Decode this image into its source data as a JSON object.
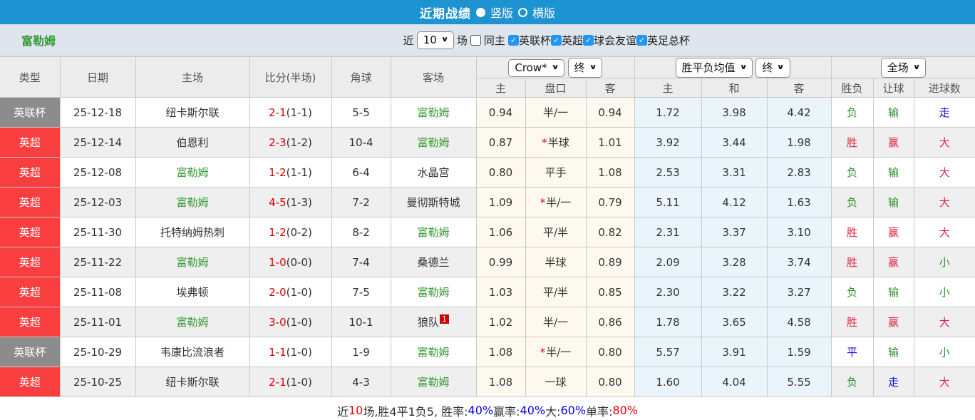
{
  "header": {
    "title": "近期战绩",
    "radio_vertical": "竖版",
    "radio_horizontal": "横版"
  },
  "filter": {
    "team": "富勒姆",
    "recent_prefix": "近",
    "recent_value": "10",
    "recent_suffix": "场",
    "same_home_label": "同主",
    "same_home_checked": false,
    "leagues": [
      {
        "label": "英联杯",
        "checked": true
      },
      {
        "label": "英超",
        "checked": true
      },
      {
        "label": "球会友谊",
        "checked": true
      },
      {
        "label": "英足总杯",
        "checked": true
      }
    ]
  },
  "table": {
    "columns": [
      "类型",
      "日期",
      "主场",
      "比分(半场)",
      "角球",
      "客场"
    ],
    "selects": {
      "company": "Crow*",
      "company_time": "终",
      "average": "胜平负均值",
      "average_time": "终",
      "scope": "全场"
    },
    "subheaders": [
      "主",
      "盘口",
      "客",
      "主",
      "和",
      "客",
      "胜负",
      "让球",
      "进球数"
    ],
    "rows": [
      {
        "type": "英联杯",
        "type_color": "type-gray",
        "date": "25-12-18",
        "home": "纽卡斯尔联",
        "home_is_focus": false,
        "score": "2-1",
        "half_score": "(1-1)",
        "corners": "5-5",
        "away": "富勒姆",
        "away_is_focus": true,
        "away_badge": "",
        "ah_home": "0.94",
        "handicap": "半/一",
        "handicap_star": false,
        "ah_away": "0.94",
        "avg_home": "1.72",
        "avg_draw": "3.98",
        "avg_away": "4.42",
        "result": "负",
        "result_color": "green",
        "handicap_result": "输",
        "handicap_result_color": "green",
        "goals_result": "走",
        "goals_result_color": "blue"
      },
      {
        "type": "英超",
        "type_color": "type-red",
        "date": "25-12-14",
        "home": "伯恩利",
        "home_is_focus": false,
        "score": "2-3",
        "half_score": "(1-2)",
        "corners": "10-4",
        "away": "富勒姆",
        "away_is_focus": true,
        "away_badge": "",
        "ah_home": "0.87",
        "handicap": "半球",
        "handicap_star": true,
        "ah_away": "1.01",
        "avg_home": "3.92",
        "avg_draw": "3.44",
        "avg_away": "1.98",
        "result": "胜",
        "result_color": "red",
        "handicap_result": "赢",
        "handicap_result_color": "red",
        "goals_result": "大",
        "goals_result_color": "red"
      },
      {
        "type": "英超",
        "type_color": "type-red",
        "date": "25-12-08",
        "home": "富勒姆",
        "home_is_focus": true,
        "score": "1-2",
        "half_score": "(1-1)",
        "corners": "6-4",
        "away": "水晶宫",
        "away_is_focus": false,
        "away_badge": "",
        "ah_home": "0.80",
        "handicap": "平手",
        "handicap_star": false,
        "ah_away": "1.08",
        "avg_home": "2.53",
        "avg_draw": "3.31",
        "avg_away": "2.83",
        "result": "负",
        "result_color": "green",
        "handicap_result": "输",
        "handicap_result_color": "green",
        "goals_result": "大",
        "goals_result_color": "red"
      },
      {
        "type": "英超",
        "type_color": "type-red",
        "date": "25-12-03",
        "home": "富勒姆",
        "home_is_focus": true,
        "score": "4-5",
        "half_score": "(1-3)",
        "corners": "7-2",
        "away": "曼彻斯特城",
        "away_is_focus": false,
        "away_badge": "",
        "ah_home": "1.09",
        "handicap": "半/一",
        "handicap_star": true,
        "ah_away": "0.79",
        "avg_home": "5.11",
        "avg_draw": "4.12",
        "avg_away": "1.63",
        "result": "负",
        "result_color": "green",
        "handicap_result": "输",
        "handicap_result_color": "green",
        "goals_result": "大",
        "goals_result_color": "red"
      },
      {
        "type": "英超",
        "type_color": "type-red",
        "date": "25-11-30",
        "home": "托特纳姆热刺",
        "home_is_focus": false,
        "score": "1-2",
        "half_score": "(0-2)",
        "corners": "8-2",
        "away": "富勒姆",
        "away_is_focus": true,
        "away_badge": "",
        "ah_home": "1.06",
        "handicap": "平/半",
        "handicap_star": false,
        "ah_away": "0.82",
        "avg_home": "2.31",
        "avg_draw": "3.37",
        "avg_away": "3.10",
        "result": "胜",
        "result_color": "red",
        "handicap_result": "赢",
        "handicap_result_color": "red",
        "goals_result": "大",
        "goals_result_color": "red"
      },
      {
        "type": "英超",
        "type_color": "type-red",
        "date": "25-11-22",
        "home": "富勒姆",
        "home_is_focus": true,
        "score": "1-0",
        "half_score": "(0-0)",
        "corners": "7-4",
        "away": "桑德兰",
        "away_is_focus": false,
        "away_badge": "",
        "ah_home": "0.99",
        "handicap": "半球",
        "handicap_star": false,
        "ah_away": "0.89",
        "avg_home": "2.09",
        "avg_draw": "3.28",
        "avg_away": "3.74",
        "result": "胜",
        "result_color": "red",
        "handicap_result": "赢",
        "handicap_result_color": "red",
        "goals_result": "小",
        "goals_result_color": "green"
      },
      {
        "type": "英超",
        "type_color": "type-red",
        "date": "25-11-08",
        "home": "埃弗顿",
        "home_is_focus": false,
        "score": "2-0",
        "half_score": "(1-0)",
        "corners": "7-5",
        "away": "富勒姆",
        "away_is_focus": true,
        "away_badge": "",
        "ah_home": "1.03",
        "handicap": "平/半",
        "handicap_star": false,
        "ah_away": "0.85",
        "avg_home": "2.30",
        "avg_draw": "3.22",
        "avg_away": "3.27",
        "result": "负",
        "result_color": "green",
        "handicap_result": "输",
        "handicap_result_color": "green",
        "goals_result": "小",
        "goals_result_color": "green"
      },
      {
        "type": "英超",
        "type_color": "type-red",
        "date": "25-11-01",
        "home": "富勒姆",
        "home_is_focus": true,
        "score": "3-0",
        "half_score": "(1-0)",
        "corners": "10-1",
        "away": "狼队",
        "away_is_focus": false,
        "away_badge": "1",
        "ah_home": "1.02",
        "handicap": "半/一",
        "handicap_star": false,
        "ah_away": "0.86",
        "avg_home": "1.78",
        "avg_draw": "3.65",
        "avg_away": "4.58",
        "result": "胜",
        "result_color": "red",
        "handicap_result": "赢",
        "handicap_result_color": "red",
        "goals_result": "大",
        "goals_result_color": "red"
      },
      {
        "type": "英联杯",
        "type_color": "type-gray",
        "date": "25-10-29",
        "home": "韦康比流浪者",
        "home_is_focus": false,
        "score": "1-1",
        "half_score": "(1-0)",
        "corners": "1-9",
        "away": "富勒姆",
        "away_is_focus": true,
        "away_badge": "",
        "ah_home": "1.08",
        "handicap": "半/一",
        "handicap_star": true,
        "ah_away": "0.80",
        "avg_home": "5.57",
        "avg_draw": "3.91",
        "avg_away": "1.59",
        "result": "平",
        "result_color": "blue",
        "handicap_result": "输",
        "handicap_result_color": "green",
        "goals_result": "小",
        "goals_result_color": "green"
      },
      {
        "type": "英超",
        "type_color": "type-red",
        "date": "25-10-25",
        "home": "纽卡斯尔联",
        "home_is_focus": false,
        "score": "2-1",
        "half_score": "(1-0)",
        "corners": "4-3",
        "away": "富勒姆",
        "away_is_focus": true,
        "away_badge": "",
        "ah_home": "1.08",
        "handicap": "一球",
        "handicap_star": false,
        "ah_away": "0.80",
        "avg_home": "1.60",
        "avg_draw": "4.04",
        "avg_away": "5.55",
        "result": "负",
        "result_color": "green",
        "handicap_result": "走",
        "handicap_result_color": "blue",
        "goals_result": "大",
        "goals_result_color": "red"
      }
    ]
  },
  "footer": {
    "segments": [
      {
        "text": "近",
        "color": "#333333"
      },
      {
        "text": "10",
        "color": "#ee0000"
      },
      {
        "text": "场,胜4平1负5, 胜率:",
        "color": "#333333"
      },
      {
        "text": "40%",
        "color": "#0000ee"
      },
      {
        "text": " 赢率:",
        "color": "#333333"
      },
      {
        "text": "40%",
        "color": "#0000ee"
      },
      {
        "text": " 大:",
        "color": "#333333"
      },
      {
        "text": "60%",
        "color": "#0000ee"
      },
      {
        "text": " 单率:",
        "color": "#333333"
      },
      {
        "text": "80%",
        "color": "#ee0000"
      }
    ]
  },
  "colors": {
    "topbar_blue": "#1e93d2",
    "league_red": "#f83e3e",
    "league_gray": "#8c8c8c",
    "focus_team_green": "#339933",
    "score_red": "#dd0000",
    "result_red": "#e02444",
    "result_green": "#2e8f2e",
    "result_blue": "#0f0fe6",
    "handicap_bg": "#fdf9ee",
    "average_bg": "#eaf4fb",
    "checkbox_blue": "#2196f3"
  }
}
